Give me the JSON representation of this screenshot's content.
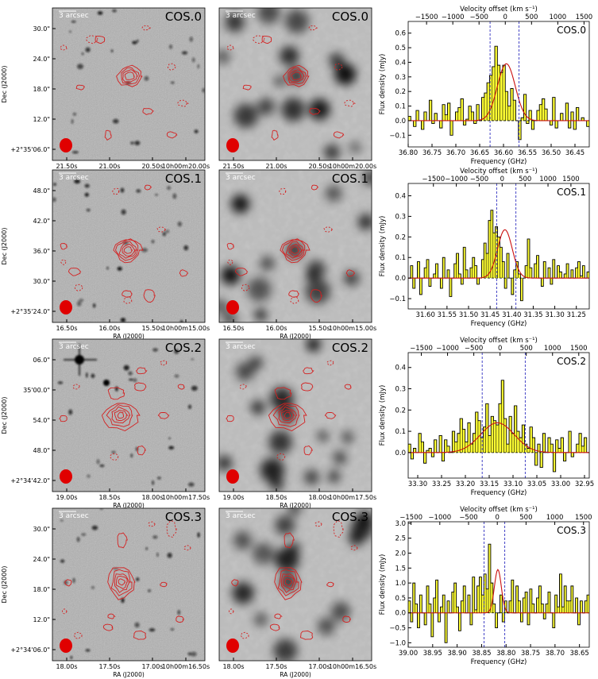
{
  "colors": {
    "contour": "#d42020",
    "beam": "#e00000",
    "spectrum_fill": "#ffff33",
    "fit_line": "#cc1010",
    "velocity_marker": "#3030c0",
    "axis": "#000000",
    "optical_bg": "#9a9a9a",
    "ir_bg": "#c8c8c8"
  },
  "common": {
    "scalebar_label": "3 arcsec",
    "ra_label": "RA (J2000)",
    "dec_label": "Dec (J2000)",
    "spec_ylabel": "Flux density (mJy)",
    "spec_xlabel": "Frequency (GHz)",
    "vel_label": "Velocity offset (km s⁻¹)"
  },
  "rows": [
    {
      "name": "COS.0",
      "dec_ticks": [
        "30.0\"",
        "24.0\"",
        "18.0\"",
        "12.0\"",
        "+2°35'06.0\""
      ],
      "ra_ticks_optical": [
        "21.50s",
        "21.00s",
        "20.50s",
        "10h00m20.00s"
      ],
      "ra_ticks_ir": [
        "21.50s",
        "21.00s",
        "20.50s",
        "10h00m20.00s"
      ]
    },
    {
      "name": "COS.1",
      "dec_ticks": [
        "48.0\"",
        "42.0\"",
        "36.0\"",
        "30.0\"",
        "+2°35'24.0\""
      ],
      "ra_ticks_optical": [
        "16.50s",
        "16.00s",
        "15.50s",
        "10h00m15.00s"
      ],
      "ra_ticks_ir": [
        "16.50s",
        "16.00s",
        "15.50s",
        "10h00m15.00s"
      ]
    },
    {
      "name": "COS.2",
      "dec_ticks": [
        "06.0\"",
        "35'00.0\"",
        "54.0\"",
        "48.0\"",
        "+2°34'42.0\""
      ],
      "ra_ticks_optical": [
        "19.00s",
        "18.50s",
        "18.00s",
        "10h00m17.50s"
      ],
      "ra_ticks_ir": [
        "19.00s",
        "18.50s",
        "18.00s",
        "10h00m17.50s"
      ]
    },
    {
      "name": "COS.3",
      "dec_ticks": [
        "30.0\"",
        "24.0\"",
        "18.0\"",
        "12.0\"",
        "+2°34'06.0\""
      ],
      "ra_ticks_optical": [
        "18.00s",
        "17.50s",
        "17.00s",
        "10h00m16.50s"
      ],
      "ra_ticks_ir": [
        "18.00s",
        "17.50s",
        "17.00s",
        "10h00m16.50s"
      ]
    }
  ],
  "chart_data": [
    {
      "type": "bar",
      "title": "COS.0",
      "xlabel": "Frequency (GHz)",
      "ylabel": "Flux density (mJy)",
      "x2label": "Velocity offset (km s⁻¹)",
      "xlim": [
        36.8,
        36.42
      ],
      "ylim": [
        -0.18,
        0.68
      ],
      "x_ticks": [
        36.8,
        36.75,
        36.7,
        36.65,
        36.6,
        36.55,
        36.5,
        36.45
      ],
      "x_tick_labels": [
        "36.80",
        "36.75",
        "36.70",
        "36.65",
        "36.60",
        "36.55",
        "36.50",
        "36.45"
      ],
      "y_ticks": [
        -0.1,
        0.0,
        0.1,
        0.2,
        0.3,
        0.4,
        0.5,
        0.6
      ],
      "y_tick_labels": [
        "−0.1",
        "0.0",
        "0.1",
        "0.2",
        "0.3",
        "0.4",
        "0.5",
        "0.6"
      ],
      "vel_ticks": [
        -1500,
        -1000,
        -500,
        0,
        500,
        1000,
        1500
      ],
      "vel_tick_labels": [
        "−1500",
        "−1000",
        "−500",
        "0",
        "500",
        "1000",
        "1500"
      ],
      "velocity_range": [
        -1850,
        1600
      ],
      "marker_velocities": [
        -290,
        260
      ],
      "fit": {
        "amplitude": 0.39,
        "center_velocity": 20,
        "sigma_velocity": 170
      },
      "channel_width_velocity": 50,
      "values": [
        0.03,
        0.0,
        -0.04,
        0.07,
        0.0,
        -0.06,
        0.06,
        0.0,
        0.14,
        -0.02,
        0.05,
        0.0,
        -0.05,
        0.11,
        0.04,
        0.12,
        -0.1,
        0.0,
        0.06,
        0.09,
        0.15,
        -0.03,
        0.01,
        0.1,
        0.06,
        -0.02,
        0.11,
        0.0,
        0.16,
        0.19,
        0.26,
        0.31,
        0.37,
        0.51,
        0.38,
        0.33,
        0.38,
        0.2,
        0.1,
        0.22,
        0.14,
        0.0,
        -0.13,
        0.02,
        0.18,
        -0.02,
        0.07,
        -0.06,
        0.0,
        0.07,
        0.11,
        0.15,
        0.08,
        0.0,
        -0.03,
        0.16,
        -0.05,
        0.0,
        0.05,
        0.0,
        0.12,
        -0.05,
        0.06,
        -0.06,
        0.09,
        0.0,
        0.02,
        0.0,
        -0.04
      ]
    },
    {
      "type": "bar",
      "title": "COS.1",
      "xlabel": "Frequency (GHz)",
      "ylabel": "Flux density (mJy)",
      "x2label": "Velocity offset (km s⁻¹)",
      "xlim": [
        31.64,
        31.22
      ],
      "ylim": [
        -0.15,
        0.46
      ],
      "x_ticks": [
        31.6,
        31.55,
        31.5,
        31.45,
        31.4,
        31.35,
        31.3,
        31.25
      ],
      "x_tick_labels": [
        "31.60",
        "31.55",
        "31.50",
        "31.45",
        "31.40",
        "31.35",
        "31.30",
        "31.25"
      ],
      "y_ticks": [
        -0.1,
        0.0,
        0.1,
        0.2,
        0.3,
        0.4
      ],
      "y_tick_labels": [
        "−0.1",
        "0.0",
        "0.1",
        "0.2",
        "0.3",
        "0.4"
      ],
      "vel_ticks": [
        -1500,
        -1000,
        -500,
        0,
        500,
        1000,
        1500
      ],
      "vel_tick_labels": [
        "−1500",
        "−1000",
        "−500",
        "0",
        "500",
        "1000",
        "1500"
      ],
      "velocity_range": [
        -2050,
        1900
      ],
      "marker_velocities": [
        -120,
        300
      ],
      "fit": {
        "amplitude": 0.235,
        "center_velocity": 60,
        "sigma_velocity": 160
      },
      "channel_width_velocity": 50,
      "values": [
        0.0,
        0.06,
        -0.05,
        0.0,
        0.08,
        -0.08,
        0.0,
        0.05,
        0.09,
        -0.04,
        0.0,
        0.02,
        0.07,
        0.0,
        -0.05,
        0.1,
        0.0,
        0.04,
        -0.09,
        0.0,
        0.07,
        0.12,
        0.02,
        -0.03,
        0.15,
        0.04,
        0.0,
        0.05,
        0.1,
        0.06,
        -0.03,
        0.0,
        0.09,
        0.17,
        0.12,
        0.28,
        0.33,
        0.22,
        0.25,
        0.2,
        0.15,
        0.08,
        -0.05,
        0.12,
        0.0,
        -0.08,
        0.04,
        0.08,
        0.02,
        -0.11,
        0.0,
        0.06,
        0.19,
        0.05,
        0.0,
        0.07,
        0.11,
        0.0,
        -0.04,
        0.08,
        0.0,
        0.05,
        -0.03,
        0.09,
        0.0,
        0.06,
        0.03,
        0.0,
        0.02,
        0.07,
        0.0,
        0.04,
        0.0,
        0.05,
        0.08,
        0.01,
        0.06,
        0.0,
        0.03
      ]
    },
    {
      "type": "bar",
      "title": "COS.2",
      "xlabel": "Frequency (GHz)",
      "ylabel": "Flux density (mJy)",
      "x2label": "Velocity offset (km s⁻¹)",
      "xlim": [
        33.32,
        32.94
      ],
      "ylim": [
        -0.12,
        0.47
      ],
      "x_ticks": [
        33.3,
        33.25,
        33.2,
        33.15,
        33.1,
        33.05,
        33.0,
        32.95
      ],
      "x_tick_labels": [
        "33.30",
        "33.25",
        "33.20",
        "33.15",
        "33.10",
        "33.05",
        "33.00",
        "32.95"
      ],
      "y_ticks": [
        0.0,
        0.1,
        0.2,
        0.3,
        0.4
      ],
      "y_tick_labels": [
        "0.0",
        "0.1",
        "0.2",
        "0.3",
        "0.4"
      ],
      "vel_ticks": [
        -1500,
        -1000,
        -500,
        0,
        500,
        1000,
        1500
      ],
      "vel_tick_labels": [
        "−1500",
        "−1000",
        "−500",
        "0",
        "500",
        "1000",
        "1500"
      ],
      "velocity_range": [
        -1750,
        1700
      ],
      "marker_velocities": [
        -340,
        480
      ],
      "fit": {
        "amplitude": 0.14,
        "center_velocity": -50,
        "sigma_velocity": 320
      },
      "channel_width_velocity": 50,
      "values": [
        0.04,
        -0.03,
        0.02,
        0.0,
        0.09,
        0.05,
        -0.05,
        0.01,
        0.02,
        -0.02,
        0.06,
        0.0,
        0.08,
        -0.04,
        0.06,
        0.03,
        0.0,
        0.1,
        0.05,
        0.09,
        0.16,
        0.11,
        0.05,
        0.14,
        0.04,
        0.09,
        0.19,
        0.15,
        0.07,
        0.12,
        0.23,
        0.08,
        0.17,
        0.15,
        0.13,
        0.23,
        0.34,
        0.16,
        0.04,
        0.17,
        0.09,
        0.22,
        0.1,
        0.07,
        0.13,
        0.04,
        0.02,
        0.12,
        0.07,
        -0.06,
        0.04,
        -0.07,
        0.09,
        0.0,
        0.07,
        0.04,
        -0.09,
        0.06,
        0.02,
        0.07,
        -0.04,
        0.0,
        0.1,
        -0.02,
        0.0,
        0.04,
        0.09,
        0.03,
        0.07,
        0.0
      ]
    },
    {
      "type": "bar",
      "title": "COS.3",
      "xlabel": "Frequency (GHz)",
      "ylabel": "Flux density (mJy)",
      "x2label": "Velocity offset (km s⁻¹)",
      "xlim": [
        39.0,
        38.63
      ],
      "ylim": [
        -1.15,
        3.05
      ],
      "x_ticks": [
        39.0,
        38.95,
        38.9,
        38.85,
        38.8,
        38.75,
        38.7,
        38.65
      ],
      "x_tick_labels": [
        "39.00",
        "38.95",
        "38.90",
        "38.85",
        "38.80",
        "38.75",
        "38.70",
        "38.65"
      ],
      "y_ticks": [
        -1.0,
        -0.5,
        0.0,
        0.5,
        1.0,
        1.5,
        2.0,
        2.5,
        3.0
      ],
      "y_tick_labels": [
        "−1.0",
        "−0.5",
        "0.0",
        "0.5",
        "1.0",
        "1.5",
        "2.0",
        "2.5",
        "3.0"
      ],
      "vel_ticks": [
        -1500,
        -1000,
        -500,
        0,
        500,
        1000,
        1500
      ],
      "vel_tick_labels": [
        "−1500",
        "−1000",
        "−500",
        "0",
        "500",
        "1000",
        "1500"
      ],
      "velocity_range": [
        -1550,
        1600
      ],
      "marker_velocities": [
        -230,
        130
      ],
      "fit": {
        "amplitude": 1.45,
        "center_velocity": 10,
        "sigma_velocity": 60
      },
      "channel_width_velocity": 40,
      "values": [
        0.4,
        -0.3,
        1.0,
        0.3,
        -0.5,
        0.6,
        0.0,
        -0.4,
        0.9,
        0.3,
        -0.8,
        0.5,
        1.1,
        -0.3,
        0.2,
        0.6,
        -1.0,
        0.4,
        0.0,
        0.7,
        1.0,
        0.2,
        -0.6,
        0.4,
        0.9,
        0.0,
        0.6,
        -0.4,
        1.2,
        0.1,
        0.9,
        1.2,
        0.6,
        1.3,
        0.8,
        2.3,
        1.0,
        0.3,
        -0.5,
        0.0,
        0.6,
        -0.3,
        0.4,
        0.0,
        0.4,
        1.1,
        0.0,
        0.9,
        0.4,
        -0.3,
        0.5,
        0.7,
        -0.4,
        0.8,
        0.3,
        0.0,
        0.5,
        0.9,
        0.3,
        -0.2,
        0.3,
        0.7,
        0.0,
        -0.5,
        0.6,
        0.2,
        1.3,
        0.2,
        0.9,
        0.4,
        0.4,
        0.9,
        0.0,
        0.5,
        -0.4,
        0.4,
        0.0,
        0.4,
        0.6
      ]
    }
  ]
}
